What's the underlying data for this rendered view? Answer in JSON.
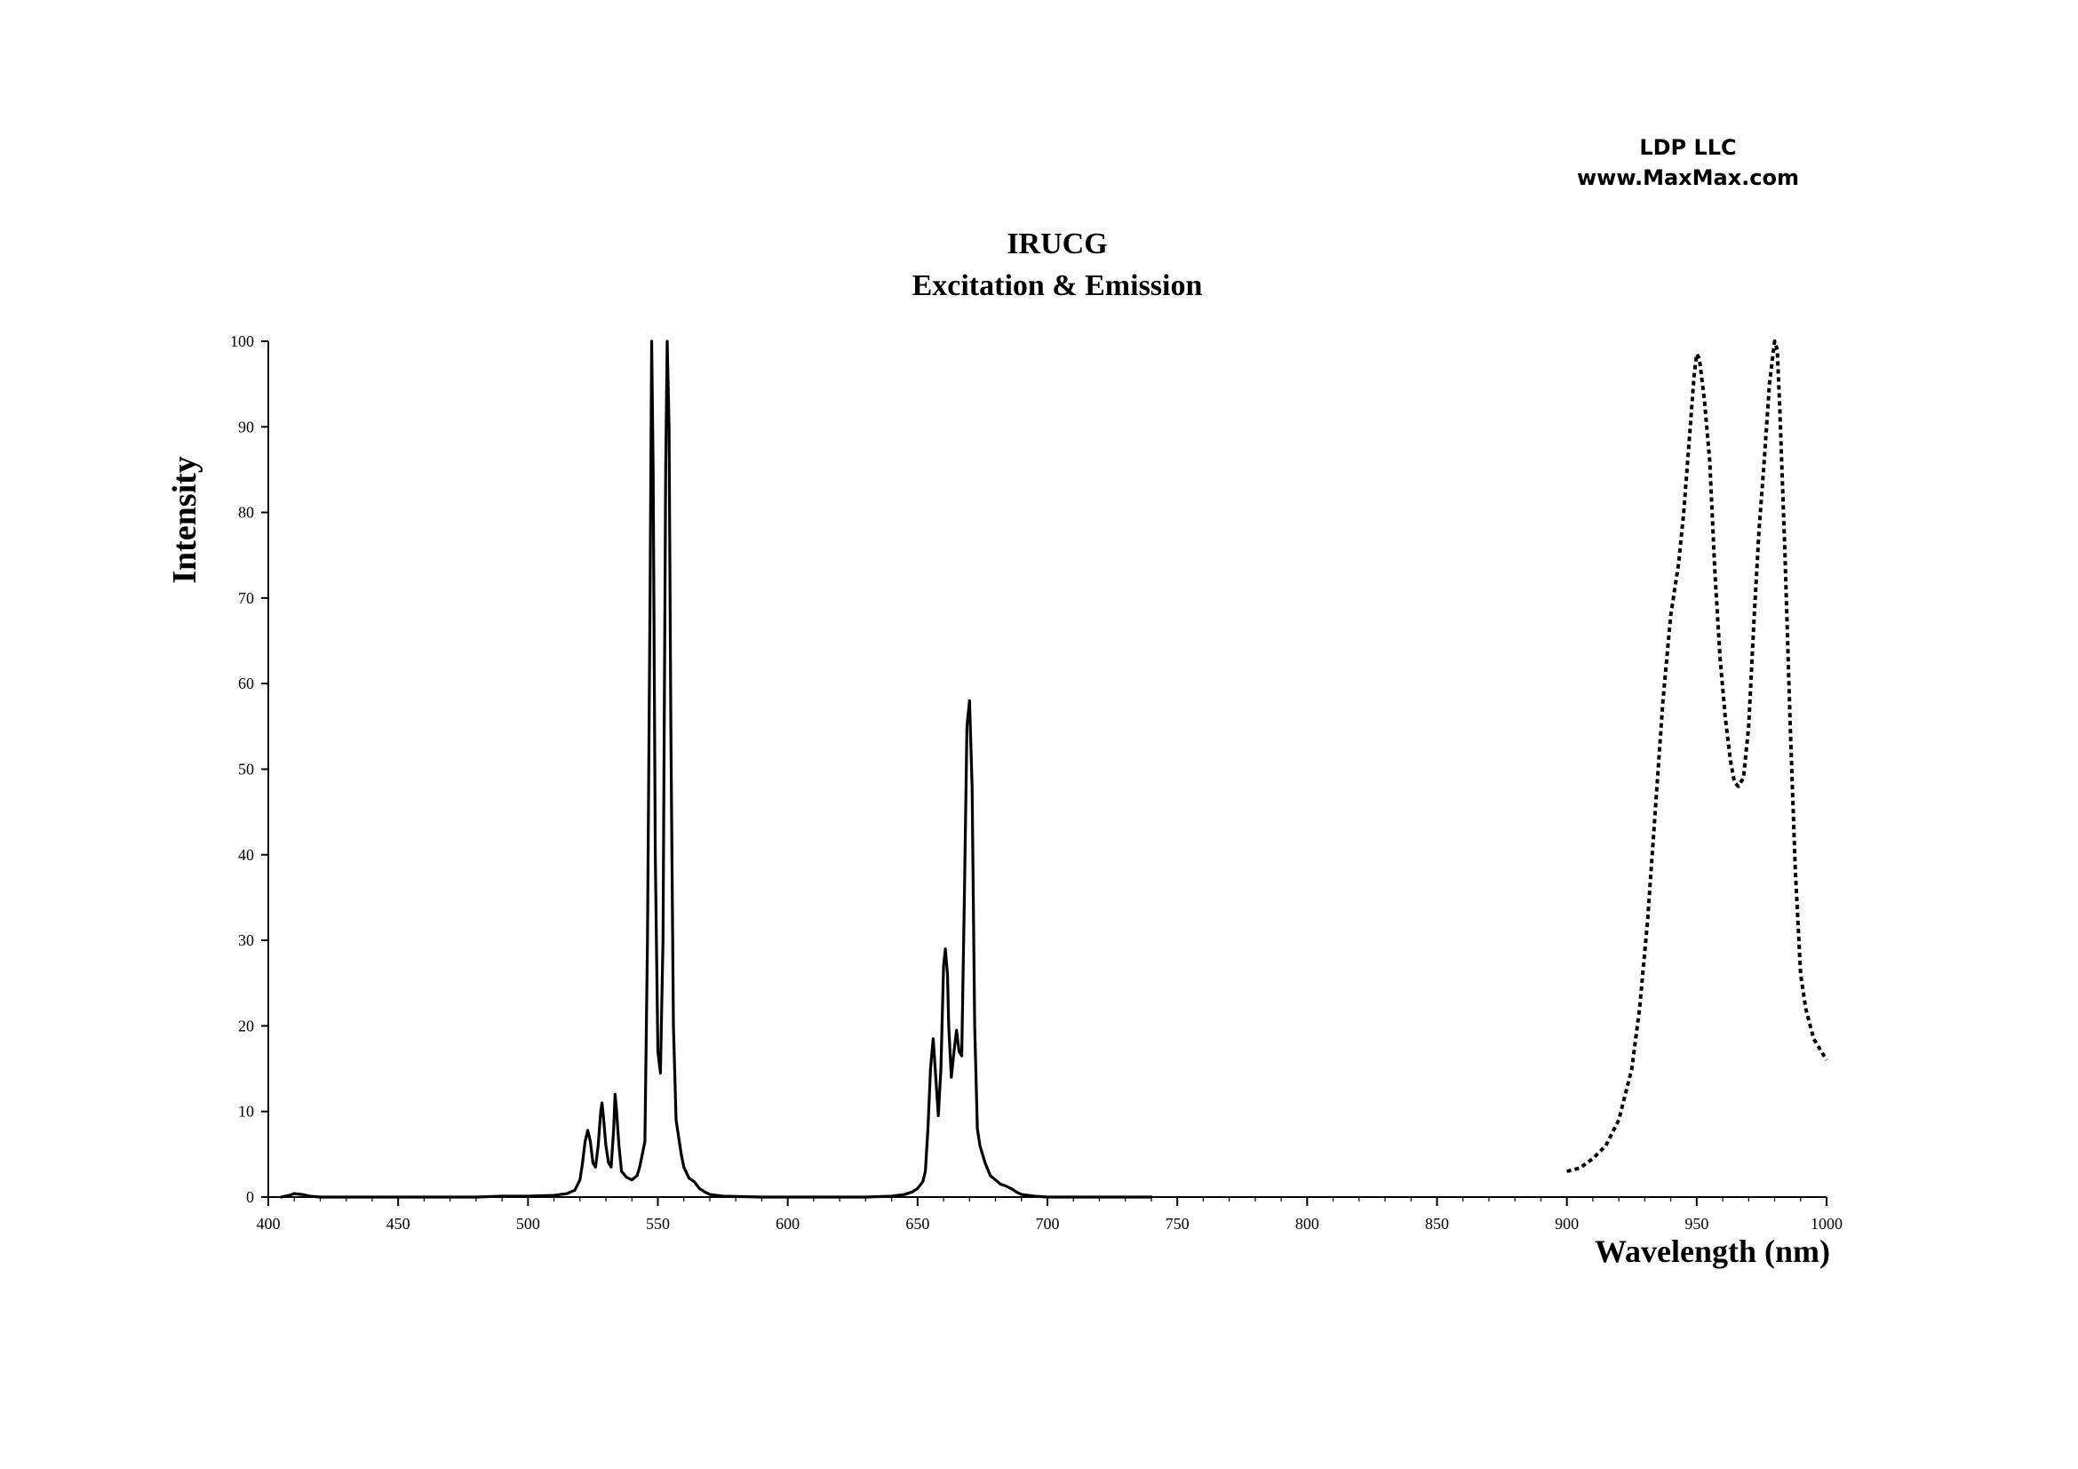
{
  "header": {
    "company": "LDP LLC",
    "website": "www.MaxMax.com"
  },
  "chart_data": {
    "type": "line",
    "title": "IRUCG",
    "subtitle": "Excitation & Emission",
    "xlabel": "Wavelength (nm)",
    "ylabel": "Intensity",
    "xlim": [
      400,
      1000
    ],
    "ylim": [
      0,
      100
    ],
    "x_ticks": [
      400,
      450,
      500,
      550,
      600,
      650,
      700,
      750,
      800,
      850,
      900,
      950,
      1000
    ],
    "y_ticks": [
      0,
      10,
      20,
      30,
      40,
      50,
      60,
      70,
      80,
      90,
      100
    ],
    "x_minor_step": 10,
    "grid": false,
    "legend": "none",
    "colors": {
      "line": "#000000",
      "axis": "#000000",
      "background": "#ffffff"
    },
    "series": [
      {
        "style": "solid",
        "points": [
          [
            405,
            0
          ],
          [
            408,
            0.2
          ],
          [
            410,
            0.4
          ],
          [
            413,
            0.3
          ],
          [
            416,
            0.1
          ],
          [
            420,
            0
          ],
          [
            480,
            0
          ],
          [
            490,
            0.1
          ],
          [
            500,
            0.1
          ],
          [
            510,
            0.2
          ],
          [
            515,
            0.4
          ],
          [
            518,
            0.8
          ],
          [
            520,
            2
          ],
          [
            521,
            4
          ],
          [
            522,
            6.5
          ],
          [
            523,
            7.8
          ],
          [
            524,
            6.5
          ],
          [
            525,
            4
          ],
          [
            526,
            3.5
          ],
          [
            527,
            6
          ],
          [
            528,
            10
          ],
          [
            528.5,
            11
          ],
          [
            529,
            9.5
          ],
          [
            530,
            6
          ],
          [
            531,
            4
          ],
          [
            532,
            3.5
          ],
          [
            533,
            8
          ],
          [
            533.5,
            12
          ],
          [
            534,
            10.5
          ],
          [
            535,
            6
          ],
          [
            536,
            3
          ],
          [
            538,
            2.3
          ],
          [
            540,
            2
          ],
          [
            542,
            2.5
          ],
          [
            543,
            3.5
          ],
          [
            544,
            5
          ],
          [
            545,
            6.5
          ],
          [
            546,
            30
          ],
          [
            547,
            70
          ],
          [
            547.6,
            100
          ],
          [
            548.2,
            85
          ],
          [
            549,
            40
          ],
          [
            550,
            17
          ],
          [
            551,
            14.5
          ],
          [
            552,
            30
          ],
          [
            553,
            85
          ],
          [
            553.6,
            100
          ],
          [
            554.3,
            90
          ],
          [
            555,
            55
          ],
          [
            556,
            20
          ],
          [
            557,
            9
          ],
          [
            558,
            7
          ],
          [
            559,
            5
          ],
          [
            560,
            3.5
          ],
          [
            562,
            2.2
          ],
          [
            564,
            1.8
          ],
          [
            566,
            1
          ],
          [
            568,
            0.6
          ],
          [
            570,
            0.3
          ],
          [
            575,
            0.1
          ],
          [
            590,
            0
          ],
          [
            630,
            0
          ],
          [
            640,
            0.1
          ],
          [
            645,
            0.3
          ],
          [
            648,
            0.6
          ],
          [
            650,
            1
          ],
          [
            652,
            1.8
          ],
          [
            653,
            3
          ],
          [
            654,
            8
          ],
          [
            655,
            15
          ],
          [
            656,
            18.5
          ],
          [
            657,
            14
          ],
          [
            658,
            9.5
          ],
          [
            659,
            15
          ],
          [
            660,
            27
          ],
          [
            660.7,
            29
          ],
          [
            661.5,
            26
          ],
          [
            662,
            20
          ],
          [
            663,
            14
          ],
          [
            664,
            17
          ],
          [
            665,
            19.5
          ],
          [
            666,
            17
          ],
          [
            667,
            16.5
          ],
          [
            668,
            35
          ],
          [
            669,
            55
          ],
          [
            670,
            58
          ],
          [
            671,
            48
          ],
          [
            672,
            20
          ],
          [
            673,
            8
          ],
          [
            674,
            6
          ],
          [
            675,
            5
          ],
          [
            676,
            4
          ],
          [
            678,
            2.5
          ],
          [
            680,
            2
          ],
          [
            682,
            1.5
          ],
          [
            684,
            1.3
          ],
          [
            686,
            1
          ],
          [
            688,
            0.6
          ],
          [
            690,
            0.3
          ],
          [
            695,
            0.1
          ],
          [
            700,
            0
          ],
          [
            720,
            0
          ],
          [
            740,
            0
          ]
        ]
      },
      {
        "style": "dotted",
        "points": [
          [
            900,
            3
          ],
          [
            905,
            3.4
          ],
          [
            910,
            4.5
          ],
          [
            915,
            6
          ],
          [
            920,
            9
          ],
          [
            925,
            15
          ],
          [
            928,
            22
          ],
          [
            931,
            32
          ],
          [
            934,
            45
          ],
          [
            937,
            58
          ],
          [
            940,
            68
          ],
          [
            943,
            74
          ],
          [
            945,
            80
          ],
          [
            947,
            88
          ],
          [
            949,
            96
          ],
          [
            950,
            98.5
          ],
          [
            951,
            98
          ],
          [
            953,
            93
          ],
          [
            955,
            86
          ],
          [
            957,
            73
          ],
          [
            959,
            63
          ],
          [
            961,
            56
          ],
          [
            963,
            51
          ],
          [
            964.5,
            48.5
          ],
          [
            966,
            48
          ],
          [
            968,
            49
          ],
          [
            970,
            55
          ],
          [
            972,
            67
          ],
          [
            974,
            78
          ],
          [
            976,
            86
          ],
          [
            978,
            95
          ],
          [
            980,
            100
          ],
          [
            981,
            99
          ],
          [
            982,
            92
          ],
          [
            984,
            75
          ],
          [
            986,
            55
          ],
          [
            988,
            38
          ],
          [
            990,
            26
          ],
          [
            992,
            22
          ],
          [
            995,
            18.5
          ],
          [
            998,
            17
          ],
          [
            1000,
            16
          ]
        ]
      }
    ]
  }
}
